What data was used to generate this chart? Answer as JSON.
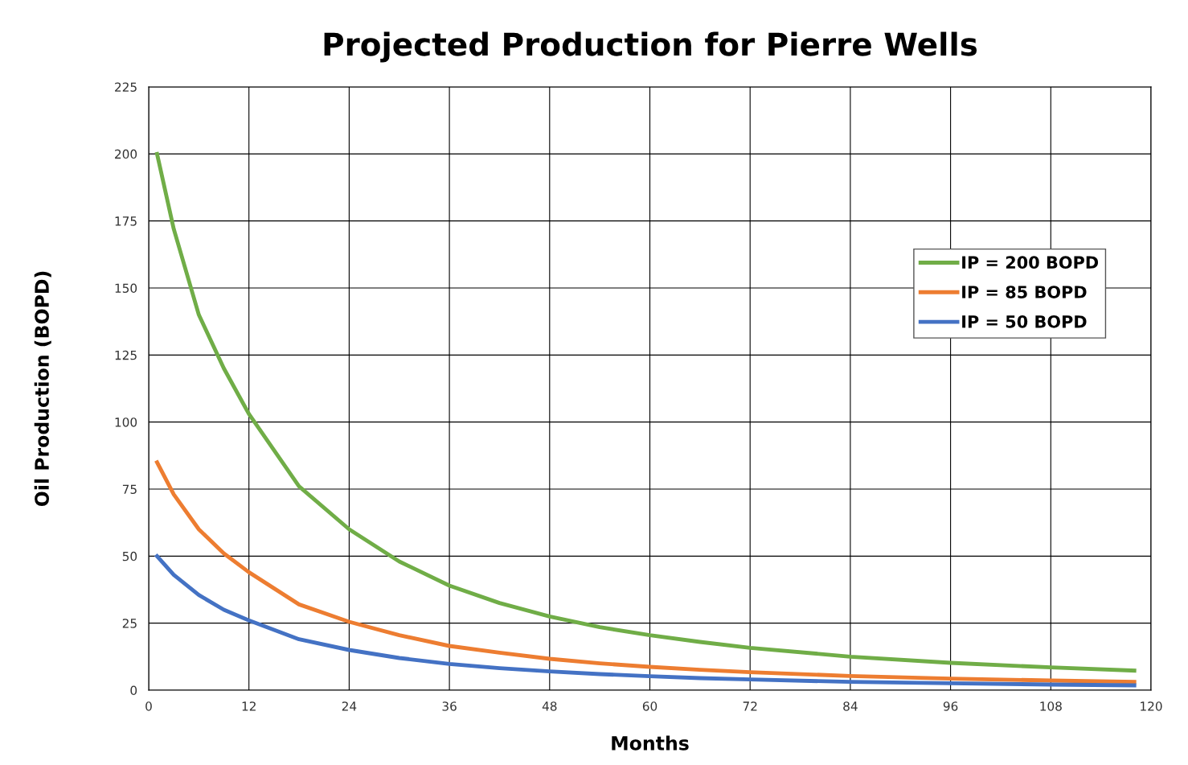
{
  "chart_data": {
    "type": "line",
    "title": "Projected Production for Pierre Wells",
    "xlabel": "Months",
    "ylabel": "Oil Production (BOPD)",
    "x": [
      1,
      3,
      6,
      9,
      12,
      18,
      24,
      30,
      36,
      42,
      48,
      54,
      60,
      66,
      72,
      84,
      96,
      108,
      118
    ],
    "series": [
      {
        "name": "IP = 200 BOPD",
        "color": "#70ad47",
        "values": [
          200,
          172,
          140,
          120,
          103,
          76,
          60,
          48,
          39,
          32.5,
          27.5,
          23.5,
          20.5,
          18,
          15.8,
          12.5,
          10.2,
          8.5,
          7.3
        ]
      },
      {
        "name": "IP = 85 BOPD",
        "color": "#ed7d31",
        "values": [
          85,
          73,
          60,
          51,
          44,
          32,
          25.5,
          20.5,
          16.5,
          14,
          11.7,
          10,
          8.7,
          7.6,
          6.7,
          5.3,
          4.3,
          3.6,
          3.1
        ]
      },
      {
        "name": "IP = 50 BOPD",
        "color": "#4472c4",
        "values": [
          50,
          43,
          35.5,
          30,
          26,
          19,
          15,
          12,
          9.8,
          8.2,
          7,
          6,
          5.2,
          4.5,
          4,
          3.1,
          2.6,
          2.1,
          1.8
        ]
      }
    ],
    "xlim": [
      0,
      120
    ],
    "xticks": [
      0,
      12,
      24,
      36,
      48,
      60,
      72,
      84,
      96,
      108,
      120
    ],
    "ylim": [
      0,
      225
    ],
    "yticks": [
      0,
      25,
      50,
      75,
      100,
      125,
      150,
      175,
      200,
      225
    ],
    "grid": true,
    "legend": "right",
    "marker": "none",
    "line_style": "solid"
  }
}
